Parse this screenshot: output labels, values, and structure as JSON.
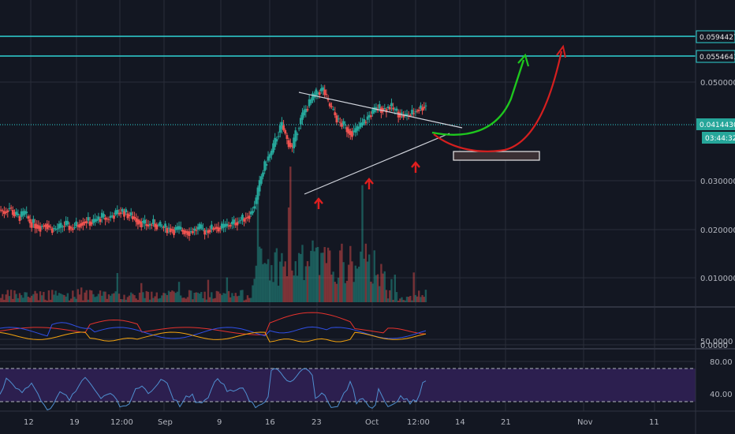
{
  "chart_data": {
    "type": "candlestick",
    "colors": {
      "background": "#131722",
      "grid": "#2a2e39",
      "up": "#26a69a",
      "down": "#ef5350",
      "resistance": "#2fd3d3",
      "triangle": "#d1d4dc",
      "bull_path": "#1ec71e",
      "bear_path": "#d51f1f",
      "marker_arrow": "#e01f1f",
      "rsi_band": "#2c1f4f",
      "osc_red": "#e5322d",
      "osc_blue": "#3050e8",
      "osc_orange": "#f2a20e",
      "rsi_line": "#4f8fd0"
    },
    "x_ticks": [
      "12",
      "19",
      "12:00",
      "Sep",
      "9",
      "16",
      "23",
      "Oct",
      "12:00",
      "14",
      "21",
      "Nov",
      "11"
    ],
    "price_axis": {
      "ticks": [
        "0.0500000",
        "0.0300000",
        "0.0200000",
        "0.0100000"
      ],
      "scale": "log"
    },
    "resistance_levels": [
      "0.0594427",
      "0.0554641"
    ],
    "current_price": "0.0414430",
    "countdown": "03:44:32",
    "oscillator_ticks": [
      "50.0000",
      "0.0000"
    ],
    "rsi_ticks": [
      "80.00",
      "40.00"
    ],
    "annotations": {
      "pattern": "symmetrical triangle",
      "support_markers": 3,
      "projections": [
        "bullish breakout",
        "retest then breakout"
      ]
    },
    "price_series": [
      0.0175,
      0.0172,
      0.0178,
      0.0168,
      0.0165,
      0.017,
      0.0158,
      0.0155,
      0.0152,
      0.0156,
      0.015,
      0.0149,
      0.0152,
      0.0155,
      0.015,
      0.0154,
      0.0158,
      0.016,
      0.0157,
      0.0161,
      0.0165,
      0.0162,
      0.0167,
      0.017,
      0.0173,
      0.0168,
      0.0165,
      0.016,
      0.0156,
      0.0154,
      0.0156,
      0.0153,
      0.0151,
      0.015,
      0.0148,
      0.0149,
      0.0147,
      0.0146,
      0.0148,
      0.015,
      0.0147,
      0.0149,
      0.0152,
      0.015,
      0.0153,
      0.0155,
      0.0158,
      0.0161,
      0.0165,
      0.017,
      0.019,
      0.023,
      0.0262,
      0.028,
      0.032,
      0.035,
      0.031,
      0.029,
      0.034,
      0.038,
      0.041,
      0.044,
      0.046,
      0.047,
      0.042,
      0.039,
      0.036,
      0.035,
      0.0335,
      0.033,
      0.0345,
      0.036,
      0.038,
      0.0395,
      0.0405,
      0.04,
      0.041,
      0.0395,
      0.0385,
      0.0378,
      0.0383,
      0.0395,
      0.0405,
      0.0414
    ]
  }
}
